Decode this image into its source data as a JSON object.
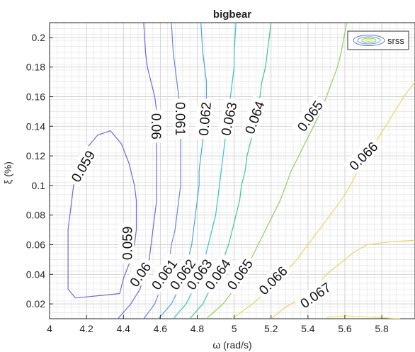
{
  "chart_data": {
    "type": "contour",
    "title": "bigbear",
    "xlabel": "ω (rad/s)",
    "ylabel": "ξ (%)",
    "xlim": [
      4.0,
      5.98
    ],
    "ylim": [
      0.01,
      0.21
    ],
    "xticks": [
      "4",
      "4.2",
      "4.4",
      "4.6",
      "4.8",
      "5",
      "5.2",
      "5.4",
      "5.6",
      "5.8"
    ],
    "yticks": [
      "0.02",
      "0.04",
      "0.06",
      "0.08",
      "0.1",
      "0.12",
      "0.14",
      "0.16",
      "0.18",
      "0.2"
    ],
    "grid": "minor",
    "legend": {
      "location": "top-right",
      "entries": [
        "srss"
      ]
    },
    "contours": [
      {
        "level": 0.059,
        "color": "#6b6bd6",
        "points": [
          [
            4.33,
            0.137
          ],
          [
            4.39,
            0.128
          ],
          [
            4.43,
            0.115
          ],
          [
            4.46,
            0.1
          ],
          [
            4.47,
            0.09
          ],
          [
            4.47,
            0.08
          ],
          [
            4.47,
            0.07
          ],
          [
            4.46,
            0.06
          ],
          [
            4.44,
            0.05
          ],
          [
            4.4,
            0.037
          ],
          [
            4.38,
            0.027
          ],
          [
            4.3,
            0.026
          ],
          [
            4.22,
            0.025
          ],
          [
            4.14,
            0.024
          ],
          [
            4.1,
            0.03
          ],
          [
            4.1,
            0.04
          ],
          [
            4.1,
            0.05
          ],
          [
            4.1,
            0.06
          ],
          [
            4.1,
            0.07
          ],
          [
            4.11,
            0.08
          ],
          [
            4.12,
            0.09
          ],
          [
            4.13,
            0.1
          ],
          [
            4.15,
            0.112
          ],
          [
            4.2,
            0.125
          ],
          [
            4.26,
            0.134
          ],
          [
            4.33,
            0.137
          ]
        ],
        "labels": [
          {
            "at": [
              4.18,
              0.113
            ],
            "text": "0.059",
            "angle": -60
          },
          {
            "at": [
              4.42,
              0.061
            ],
            "text": "0.059",
            "angle": -90
          }
        ]
      },
      {
        "level": 0.06,
        "color": "#6b6bd6",
        "points": [
          [
            4.37,
            0.01
          ],
          [
            4.44,
            0.02
          ],
          [
            4.49,
            0.03
          ],
          [
            4.51,
            0.04
          ],
          [
            4.54,
            0.05
          ],
          [
            4.55,
            0.06
          ],
          [
            4.56,
            0.07
          ],
          [
            4.57,
            0.08
          ],
          [
            4.58,
            0.09
          ],
          [
            4.58,
            0.1
          ],
          [
            4.58,
            0.11
          ],
          [
            4.58,
            0.12
          ],
          [
            4.58,
            0.13
          ],
          [
            4.58,
            0.14
          ],
          [
            4.58,
            0.15
          ],
          [
            4.57,
            0.16
          ],
          [
            4.55,
            0.17
          ],
          [
            4.53,
            0.18
          ],
          [
            4.52,
            0.19
          ],
          [
            4.51,
            0.21
          ]
        ],
        "labels": [
          {
            "at": [
              4.58,
              0.14
            ],
            "text": "0.06",
            "angle": 90
          },
          {
            "at": [
              4.49,
              0.04
            ],
            "text": "0.06",
            "angle": -55
          }
        ]
      },
      {
        "level": 0.061,
        "color": "#6a86d6",
        "points": [
          [
            4.51,
            0.01
          ],
          [
            4.57,
            0.02
          ],
          [
            4.6,
            0.03
          ],
          [
            4.63,
            0.04
          ],
          [
            4.65,
            0.05
          ],
          [
            4.66,
            0.06
          ],
          [
            4.68,
            0.07
          ],
          [
            4.69,
            0.08
          ],
          [
            4.7,
            0.09
          ],
          [
            4.71,
            0.1
          ],
          [
            4.71,
            0.11
          ],
          [
            4.71,
            0.12
          ],
          [
            4.71,
            0.13
          ],
          [
            4.71,
            0.14
          ],
          [
            4.71,
            0.15
          ],
          [
            4.7,
            0.16
          ],
          [
            4.69,
            0.17
          ],
          [
            4.68,
            0.18
          ],
          [
            4.67,
            0.19
          ],
          [
            4.66,
            0.21
          ]
        ],
        "labels": [
          {
            "at": [
              4.71,
              0.145
            ],
            "text": "0.061",
            "angle": 90
          },
          {
            "at": [
              4.62,
              0.04
            ],
            "text": "0.061",
            "angle": -55
          }
        ]
      },
      {
        "level": 0.062,
        "color": "#45a6d8",
        "points": [
          [
            4.59,
            0.01
          ],
          [
            4.66,
            0.02
          ],
          [
            4.7,
            0.03
          ],
          [
            4.72,
            0.04
          ],
          [
            4.75,
            0.05
          ],
          [
            4.77,
            0.06
          ],
          [
            4.78,
            0.07
          ],
          [
            4.79,
            0.08
          ],
          [
            4.8,
            0.09
          ],
          [
            4.81,
            0.1
          ],
          [
            4.81,
            0.11
          ],
          [
            4.82,
            0.12
          ],
          [
            4.83,
            0.13
          ],
          [
            4.84,
            0.14
          ],
          [
            4.85,
            0.15
          ],
          [
            4.85,
            0.16
          ],
          [
            4.85,
            0.17
          ],
          [
            4.84,
            0.18
          ],
          [
            4.83,
            0.19
          ],
          [
            4.82,
            0.21
          ]
        ],
        "labels": [
          {
            "at": [
              4.84,
              0.145
            ],
            "text": "0.062",
            "angle": -85
          },
          {
            "at": [
              4.72,
              0.04
            ],
            "text": "0.062",
            "angle": -55
          }
        ]
      },
      {
        "level": 0.063,
        "color": "#35c2c8",
        "points": [
          [
            4.67,
            0.01
          ],
          [
            4.74,
            0.02
          ],
          [
            4.78,
            0.03
          ],
          [
            4.81,
            0.04
          ],
          [
            4.84,
            0.05
          ],
          [
            4.86,
            0.06
          ],
          [
            4.88,
            0.07
          ],
          [
            4.9,
            0.08
          ],
          [
            4.91,
            0.09
          ],
          [
            4.92,
            0.1
          ],
          [
            4.93,
            0.11
          ],
          [
            4.94,
            0.12
          ],
          [
            4.95,
            0.13
          ],
          [
            4.96,
            0.14
          ],
          [
            4.97,
            0.15
          ],
          [
            4.98,
            0.16
          ],
          [
            4.99,
            0.17
          ],
          [
            5.0,
            0.18
          ],
          [
            5.0,
            0.19
          ],
          [
            5.01,
            0.21
          ]
        ],
        "labels": [
          {
            "at": [
              4.97,
              0.145
            ],
            "text": "0.063",
            "angle": -78
          },
          {
            "at": [
              4.81,
              0.04
            ],
            "text": "0.063",
            "angle": -55
          }
        ]
      },
      {
        "level": 0.064,
        "color": "#3cc59a",
        "points": [
          [
            4.76,
            0.01
          ],
          [
            4.83,
            0.02
          ],
          [
            4.87,
            0.03
          ],
          [
            4.91,
            0.04
          ],
          [
            4.94,
            0.05
          ],
          [
            4.97,
            0.06
          ],
          [
            4.99,
            0.07
          ],
          [
            5.01,
            0.08
          ],
          [
            5.03,
            0.09
          ],
          [
            5.04,
            0.1
          ],
          [
            5.06,
            0.11
          ],
          [
            5.07,
            0.12
          ],
          [
            5.09,
            0.13
          ],
          [
            5.11,
            0.14
          ],
          [
            5.12,
            0.15
          ],
          [
            5.14,
            0.16
          ],
          [
            5.15,
            0.17
          ],
          [
            5.17,
            0.18
          ],
          [
            5.18,
            0.19
          ],
          [
            5.2,
            0.21
          ]
        ],
        "labels": [
          {
            "at": [
              5.11,
              0.146
            ],
            "text": "0.064",
            "angle": -70
          },
          {
            "at": [
              4.91,
              0.04
            ],
            "text": "0.064",
            "angle": -55
          }
        ]
      },
      {
        "level": 0.065,
        "color": "#8fcd5e",
        "points": [
          [
            4.85,
            0.01
          ],
          [
            4.94,
            0.02
          ],
          [
            5.0,
            0.03
          ],
          [
            5.05,
            0.04
          ],
          [
            5.09,
            0.05
          ],
          [
            5.13,
            0.06
          ],
          [
            5.17,
            0.07
          ],
          [
            5.21,
            0.08
          ],
          [
            5.25,
            0.09
          ],
          [
            5.28,
            0.1
          ],
          [
            5.31,
            0.11
          ],
          [
            5.35,
            0.12
          ],
          [
            5.39,
            0.13
          ],
          [
            5.43,
            0.14
          ],
          [
            5.47,
            0.15
          ],
          [
            5.5,
            0.16
          ],
          [
            5.53,
            0.17
          ],
          [
            5.56,
            0.18
          ],
          [
            5.58,
            0.19
          ],
          [
            5.61,
            0.21
          ]
        ],
        "labels": [
          {
            "at": [
              5.41,
              0.147
            ],
            "text": "0.065",
            "angle": -55
          },
          {
            "at": [
              5.03,
              0.04
            ],
            "text": "0.065",
            "angle": -55
          }
        ]
      },
      {
        "level": 0.066,
        "color": "#eed45a",
        "points": [
          [
            4.99,
            0.01
          ],
          [
            5.1,
            0.02
          ],
          [
            5.19,
            0.03
          ],
          [
            5.27,
            0.04
          ],
          [
            5.34,
            0.05
          ],
          [
            5.4,
            0.06
          ],
          [
            5.46,
            0.07
          ],
          [
            5.52,
            0.08
          ],
          [
            5.58,
            0.09
          ],
          [
            5.63,
            0.1
          ],
          [
            5.67,
            0.11
          ],
          [
            5.72,
            0.12
          ],
          [
            5.77,
            0.13
          ],
          [
            5.82,
            0.14
          ],
          [
            5.87,
            0.15
          ],
          [
            5.92,
            0.16
          ],
          [
            5.98,
            0.17
          ]
        ],
        "labels": [
          {
            "at": [
              5.7,
              0.12
            ],
            "text": "0.066",
            "angle": -45
          },
          {
            "at": [
              5.21,
              0.036
            ],
            "text": "0.066",
            "angle": -45
          }
        ]
      },
      {
        "level": 0.067,
        "color": "#f1cf62",
        "points": [
          [
            5.2,
            0.01
          ],
          [
            5.28,
            0.018
          ],
          [
            5.38,
            0.025
          ],
          [
            5.45,
            0.032
          ],
          [
            5.5,
            0.04
          ],
          [
            5.58,
            0.048
          ],
          [
            5.65,
            0.055
          ],
          [
            5.72,
            0.06
          ],
          [
            5.85,
            0.062
          ],
          [
            5.98,
            0.063
          ]
        ],
        "labels": [
          {
            "at": [
              5.44,
              0.026
            ],
            "text": "0.067",
            "angle": -35
          }
        ]
      },
      {
        "level": 0.068,
        "color": "#f5e15a",
        "points": [
          [
            5.5,
            0.011
          ],
          [
            5.6,
            0.012
          ],
          [
            5.75,
            0.011
          ],
          [
            5.9,
            0.01
          ]
        ],
        "labels": []
      }
    ]
  }
}
